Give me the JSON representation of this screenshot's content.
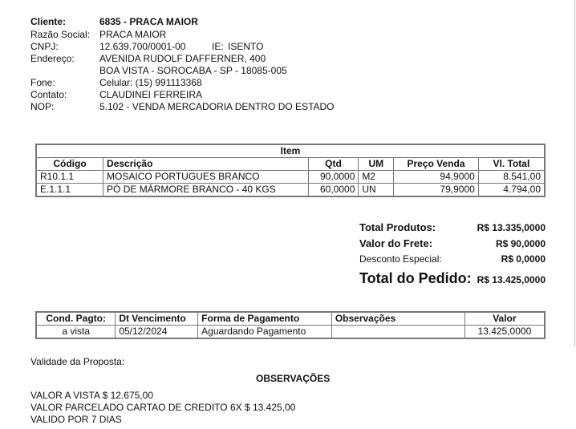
{
  "cliente": {
    "cliente_label": "Cliente:",
    "cliente_value": "6835 - PRACA MAIOR",
    "razao_label": "Razão Social:",
    "razao_value": "PRACA MAIOR",
    "cnpj_label": "CNPJ:",
    "cnpj_value": "12.639.700/0001-00",
    "ie_label": "IE:",
    "ie_value": "ISENTO",
    "endereco_label": "Endereço:",
    "endereco_line1": "AVENIDA RUDOLF DAFFERNER, 400",
    "endereco_line2": "BOA VISTA - SOROCABA - SP - 18085-005",
    "fone_label": "Fone:",
    "fone_value": "Celular: (15) 991113368",
    "contato_label": "Contato:",
    "contato_value": "CLAUDINEI FERREIRA",
    "nop_label": "NOP:",
    "nop_value": "5.102 - VENDA MERCADORIA DENTRO DO ESTADO"
  },
  "items": {
    "title": "Item",
    "headers": [
      "Código",
      "Descrição",
      "Qtd",
      "UM",
      "Preço Venda",
      "Vl. Total"
    ],
    "rows": [
      [
        "R10.1.1",
        "MOSAICO PORTUGUES BRANCO",
        "90,0000",
        "M2",
        "94,9000",
        "8.541,00"
      ],
      [
        "E.1.1.1",
        "PÓ DE MÁRMORE BRANCO - 40 KGS",
        "60,0000",
        "UN",
        "79,9000",
        "4.794,00"
      ]
    ]
  },
  "totals": {
    "produtos_label": "Total Produtos:",
    "produtos_value": "R$ 13.335,0000",
    "frete_label": "Valor do Frete:",
    "frete_value": "R$ 90,0000",
    "desconto_label": "Desconto Especial:",
    "desconto_value": "R$ 0,0000",
    "pedido_label": "Total do Pedido:",
    "pedido_value": "R$ 13.425,0000"
  },
  "payment": {
    "headers": [
      "Cond. Pagto:",
      "Dt Vencimento",
      "Forma de Pagamento",
      "Observações",
      "Valor"
    ],
    "rows": [
      [
        "a vista",
        "05/12/2024",
        "Aguardando Pagamento",
        "",
        "13.425,0000"
      ]
    ]
  },
  "validade_label": "Validade da Proposta:",
  "observacoes": {
    "title": "OBSERVAÇÕES",
    "lines": [
      "VALOR A VISTA $ 12.675,00",
      "VALOR PARCELADO CARTAO DE CREDITO 6X $ 13.425,00",
      "VALIDO POR 7 DIAS"
    ]
  }
}
